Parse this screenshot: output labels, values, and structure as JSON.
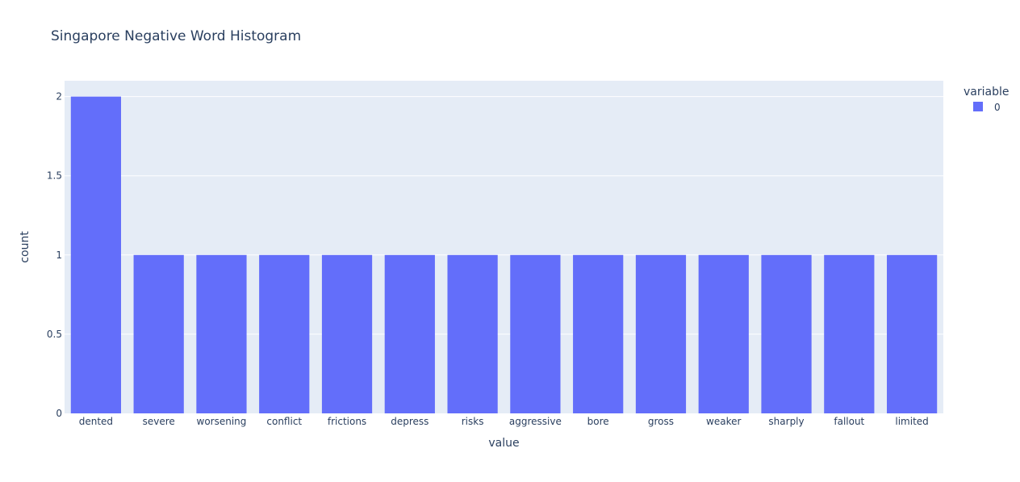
{
  "chart_data": {
    "type": "bar",
    "title": "Singapore Negative Word Histogram",
    "xlabel": "value",
    "ylabel": "count",
    "categories": [
      "dented",
      "severe",
      "worsening",
      "conflict",
      "frictions",
      "depress",
      "risks",
      "aggressive",
      "bore",
      "gross",
      "weaker",
      "sharply",
      "fallout",
      "limited"
    ],
    "series": [
      {
        "name": "0",
        "values": [
          2,
          1,
          1,
          1,
          1,
          1,
          1,
          1,
          1,
          1,
          1,
          1,
          1,
          1
        ]
      }
    ],
    "ylim": [
      0,
      2.1
    ],
    "yticks": [
      0,
      0.5,
      1,
      1.5,
      2
    ],
    "ytick_labels": [
      "0",
      "0.5",
      "1",
      "1.5",
      "2"
    ],
    "legend": {
      "title": "variable",
      "position": "top-right"
    },
    "grid": true,
    "colors": {
      "bar": "#636efa",
      "plot_bg": "#e5ecf6",
      "grid": "#ffffff",
      "text": "#2a3f5f",
      "title": "#2a3f5f"
    }
  }
}
